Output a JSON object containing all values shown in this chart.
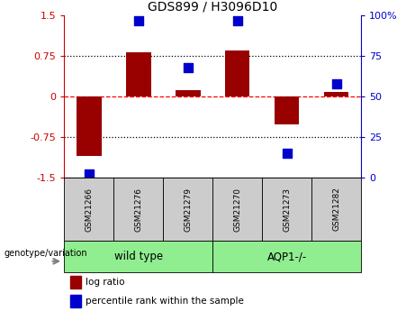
{
  "title": "GDS899 / H3096D10",
  "categories": [
    "GSM21266",
    "GSM21276",
    "GSM21279",
    "GSM21270",
    "GSM21273",
    "GSM21282"
  ],
  "log_ratio": [
    -1.1,
    0.82,
    0.12,
    0.85,
    -0.52,
    0.08
  ],
  "percentile_rank": [
    2,
    97,
    68,
    97,
    15,
    58
  ],
  "ylim_left": [
    -1.5,
    1.5
  ],
  "ylim_right": [
    0,
    100
  ],
  "yticks_left": [
    -1.5,
    -0.75,
    0,
    0.75,
    1.5
  ],
  "ytick_labels_left": [
    "-1.5",
    "-0.75",
    "0",
    "0.75",
    "1.5"
  ],
  "yticks_right": [
    0,
    25,
    50,
    75,
    100
  ],
  "ytick_labels_right": [
    "0",
    "25",
    "50",
    "75",
    "100%"
  ],
  "hlines": [
    0.75,
    0,
    -0.75
  ],
  "hline_styles": [
    "dotted",
    "dashed_red",
    "dotted"
  ],
  "bar_color": "#990000",
  "dot_color": "#0000cc",
  "bar_width": 0.5,
  "dot_size": 50,
  "group_info": [
    {
      "label": "wild type",
      "start": 0,
      "end": 3
    },
    {
      "label": "AQP1-/-",
      "start": 3,
      "end": 6
    }
  ],
  "group_color": "#90ee90",
  "sample_box_color": "#cccccc",
  "genotype_label": "genotype/variation",
  "legend_log_ratio": "log ratio",
  "legend_percentile": "percentile rank within the sample",
  "left_axis_color": "#cc0000",
  "right_axis_color": "#0000cc"
}
